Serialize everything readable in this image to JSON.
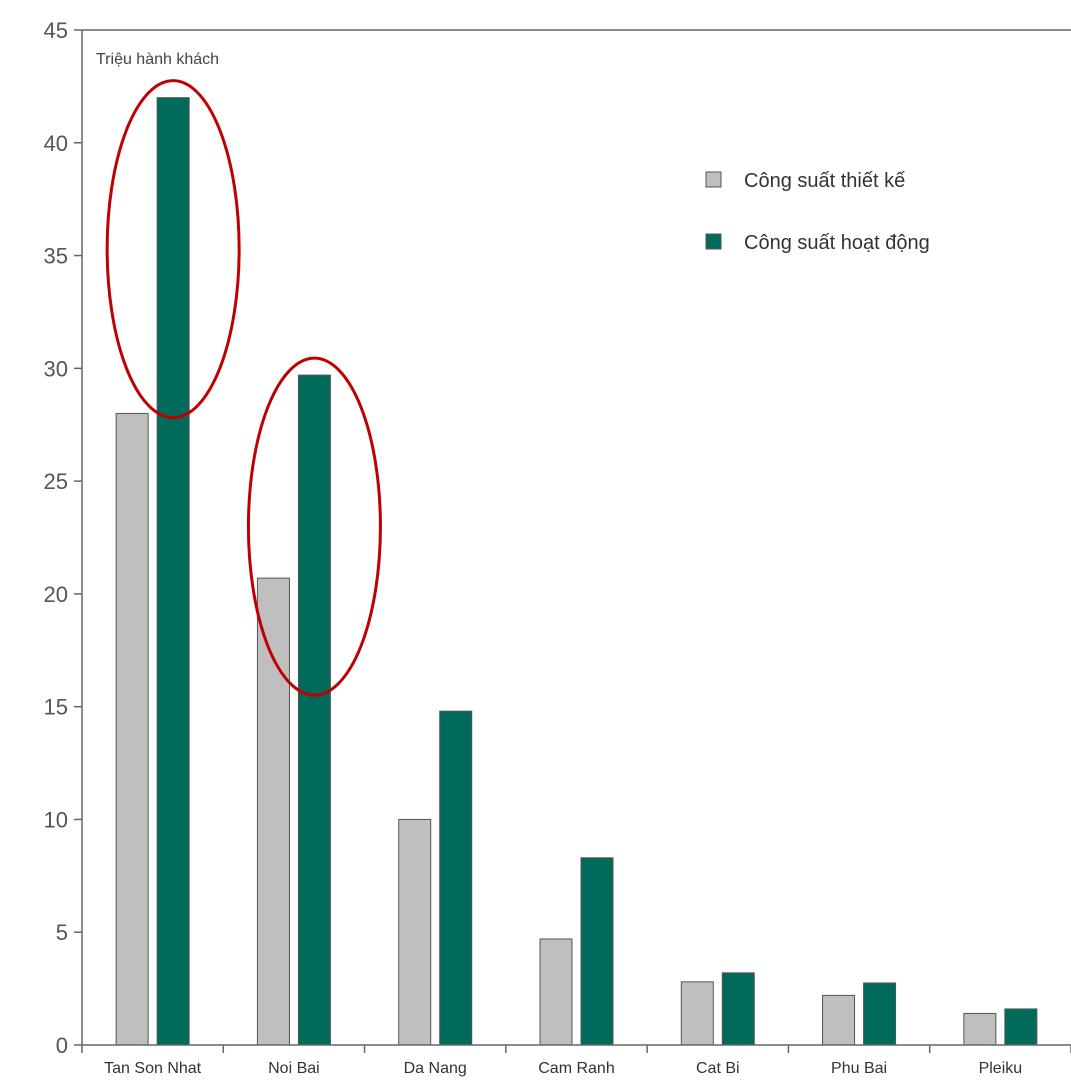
{
  "chart_data": {
    "type": "bar",
    "title": "",
    "unit_label": "Triệu hành khách",
    "xlabel": "",
    "ylabel": "",
    "ylim": [
      0,
      45
    ],
    "yticks": [
      0,
      5,
      10,
      15,
      20,
      25,
      30,
      35,
      40,
      45
    ],
    "grid": false,
    "legend_position": "top-right",
    "categories": [
      "Tan Son Nhat",
      "Noi Bai",
      "Da Nang",
      "Cam Ranh",
      "Cat Bi",
      "Phu Bai",
      "Pleiku"
    ],
    "series": [
      {
        "name": "Công suất thiết kế",
        "color": "#bfbfbf",
        "values": [
          28,
          20.7,
          10,
          4.7,
          2.8,
          2.2,
          1.4
        ]
      },
      {
        "name": "Công suất hoạt động",
        "color": "#006b5a",
        "values": [
          42,
          29.7,
          14.8,
          8.3,
          3.2,
          2.75,
          1.6
        ]
      }
    ],
    "highlights": [
      {
        "category": "Tan Son Nhat",
        "color": "#c00000"
      },
      {
        "category": "Noi Bai",
        "color": "#c00000"
      }
    ]
  }
}
